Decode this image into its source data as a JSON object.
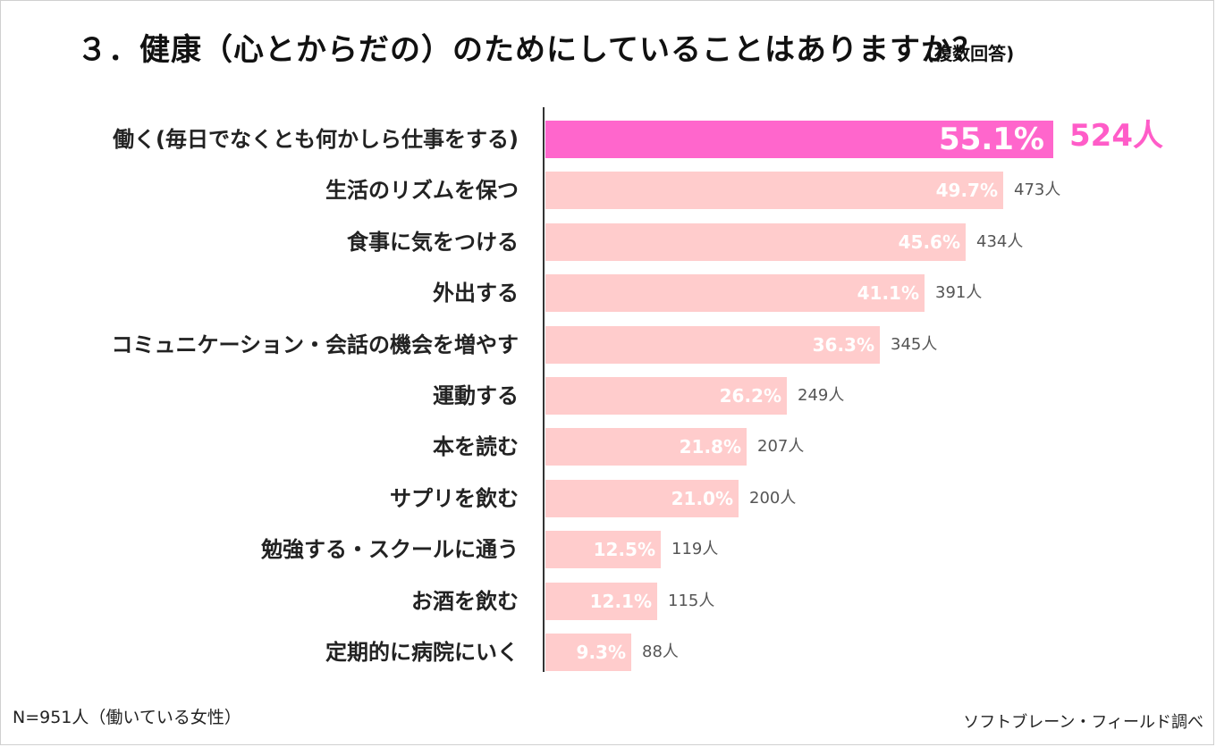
{
  "title": "３．健康（心とからだの）のためにしていることはありますか？",
  "subtitle": "(複数回答)",
  "footnote": "N=951人（働いている女性）",
  "source": "ソフトブレーン・フィールド調べ",
  "colors": {
    "highlight_bar": "#ff66cc",
    "bar": "#ffcccc",
    "highlight_text": "#ff5cc8"
  },
  "chart_data": {
    "type": "bar",
    "orientation": "horizontal",
    "categories": [
      "働く(毎日でなくとも何かしら仕事をする)",
      "生活のリズムを保つ",
      "食事に気をつける",
      "外出する",
      "コミュニケーション・会話の機会を増やす",
      "運動する",
      "本を読む",
      "サプリを飲む",
      "勉強する・スクールに通う",
      "お酒を飲む",
      "定期的に病院にいく"
    ],
    "values": [
      55.1,
      49.7,
      45.6,
      41.1,
      36.3,
      26.2,
      21.8,
      21.0,
      12.5,
      12.1,
      9.3
    ],
    "value_labels": [
      "55.1%",
      "49.7%",
      "45.6%",
      "41.1%",
      "36.3%",
      "26.2%",
      "21.8%",
      "21.0%",
      "12.5%",
      "12.1%",
      "9.3%"
    ],
    "counts": [
      "524人",
      "473人",
      "434人",
      "391人",
      "345人",
      "249人",
      "207人",
      "200人",
      "119人",
      "115人",
      "88人"
    ],
    "unit": "%",
    "highlight_index": 0,
    "xlim": [
      0,
      100
    ],
    "grid": false,
    "legend": "none"
  }
}
